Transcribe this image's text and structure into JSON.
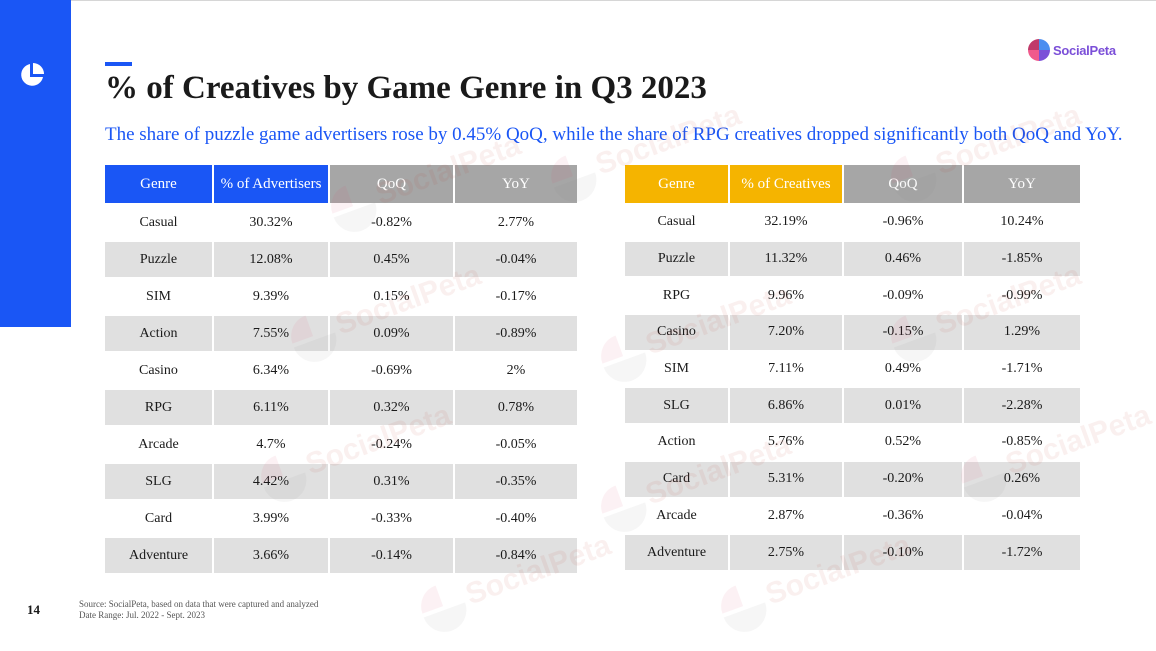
{
  "slide": {
    "title": "% of Creatives by Game Genre in Q3 2023",
    "subtitle": "The share of puzzle game advertisers rose by 0.45% QoQ, while the share of RPG creatives dropped significantly both QoQ and YoY.",
    "page_number": "14",
    "source": "Source: SocialPeta, based on data that were captured and analyzed",
    "date_range": "Date Range: Jul. 2022 - Sept. 2023",
    "brand_name": "SocialPeta",
    "watermark_text": "SocialPeta"
  },
  "colors": {
    "accent_blue": "#1a56f5",
    "accent_gold": "#f5b400",
    "header_gray": "#a6a6a6",
    "row_stripe": "#e0e0e0"
  },
  "icons": [
    "quarter-pie-icon",
    "socialpeta-logo-icon"
  ],
  "tables": {
    "advertisers": {
      "headers": [
        "Genre",
        "% of Advertisers",
        "QoQ",
        "YoY"
      ],
      "rows": [
        [
          "Casual",
          "30.32%",
          "-0.82%",
          "2.77%"
        ],
        [
          "Puzzle",
          "12.08%",
          "0.45%",
          "-0.04%"
        ],
        [
          "SIM",
          "9.39%",
          "0.15%",
          "-0.17%"
        ],
        [
          "Action",
          "7.55%",
          "0.09%",
          "-0.89%"
        ],
        [
          "Casino",
          "6.34%",
          "-0.69%",
          "2%"
        ],
        [
          "RPG",
          "6.11%",
          "0.32%",
          "0.78%"
        ],
        [
          "Arcade",
          "4.7%",
          "-0.24%",
          "-0.05%"
        ],
        [
          "SLG",
          "4.42%",
          "0.31%",
          "-0.35%"
        ],
        [
          "Card",
          "3.99%",
          "-0.33%",
          "-0.40%"
        ],
        [
          "Adventure",
          "3.66%",
          "-0.14%",
          "-0.84%"
        ]
      ]
    },
    "creatives": {
      "headers": [
        "Genre",
        "% of Creatives",
        "QoQ",
        "YoY"
      ],
      "rows": [
        [
          "Casual",
          "32.19%",
          "-0.96%",
          "10.24%"
        ],
        [
          "Puzzle",
          "11.32%",
          "0.46%",
          "-1.85%"
        ],
        [
          "RPG",
          "9.96%",
          "-0.09%",
          "-0.99%"
        ],
        [
          "Casino",
          "7.20%",
          "-0.15%",
          "1.29%"
        ],
        [
          "SIM",
          "7.11%",
          "0.49%",
          "-1.71%"
        ],
        [
          "SLG",
          "6.86%",
          "0.01%",
          "-2.28%"
        ],
        [
          "Action",
          "5.76%",
          "0.52%",
          "-0.85%"
        ],
        [
          "Card",
          "5.31%",
          "-0.20%",
          "0.26%"
        ],
        [
          "Arcade",
          "2.87%",
          "-0.36%",
          "-0.04%"
        ],
        [
          "Adventure",
          "2.75%",
          "-0.10%",
          "-1.72%"
        ]
      ]
    }
  }
}
